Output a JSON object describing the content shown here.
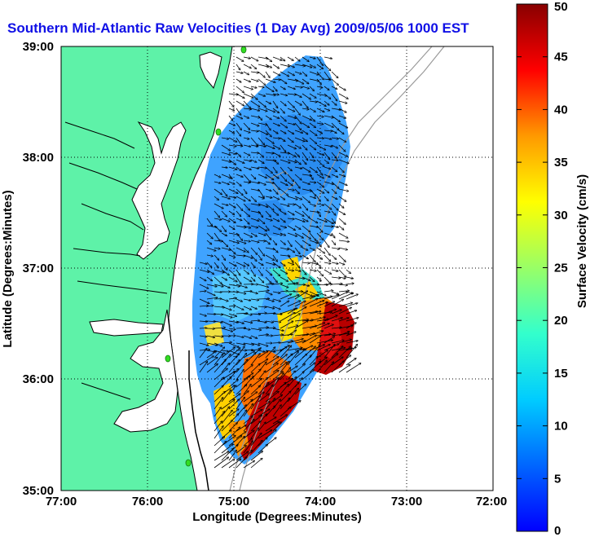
{
  "title": "Southern Mid-Atlantic Raw Velocities (1 Day Avg) 2009/05/06 1000 EST",
  "xlabel": "Longitude (Degrees:Minutes)",
  "ylabel": "Latitude (Degrees:Minutes)",
  "colorbar_label": "Surface Velocity (cm/s)",
  "x_ticks": [
    "77:00",
    "76:00",
    "75:00",
    "74:00",
    "73:00",
    "72:00"
  ],
  "y_ticks": [
    "39:00",
    "38:00",
    "37:00",
    "36:00",
    "35:00"
  ],
  "colorbar_ticks": [
    "50",
    "45",
    "40",
    "35",
    "30",
    "25",
    "20",
    "15",
    "10",
    "5",
    "0"
  ],
  "colors": {
    "land": "#5ef2a8",
    "title": "#1010e6",
    "coastline": "#000000",
    "bathymetry": "#9a9a9a",
    "station": "#33dd22"
  },
  "map_data": {
    "lon_range": [
      -77,
      -72
    ],
    "lat_range": [
      35,
      39
    ],
    "velocity_range_cm_s": [
      0,
      50
    ],
    "grid": true,
    "colormap": "jet"
  }
}
